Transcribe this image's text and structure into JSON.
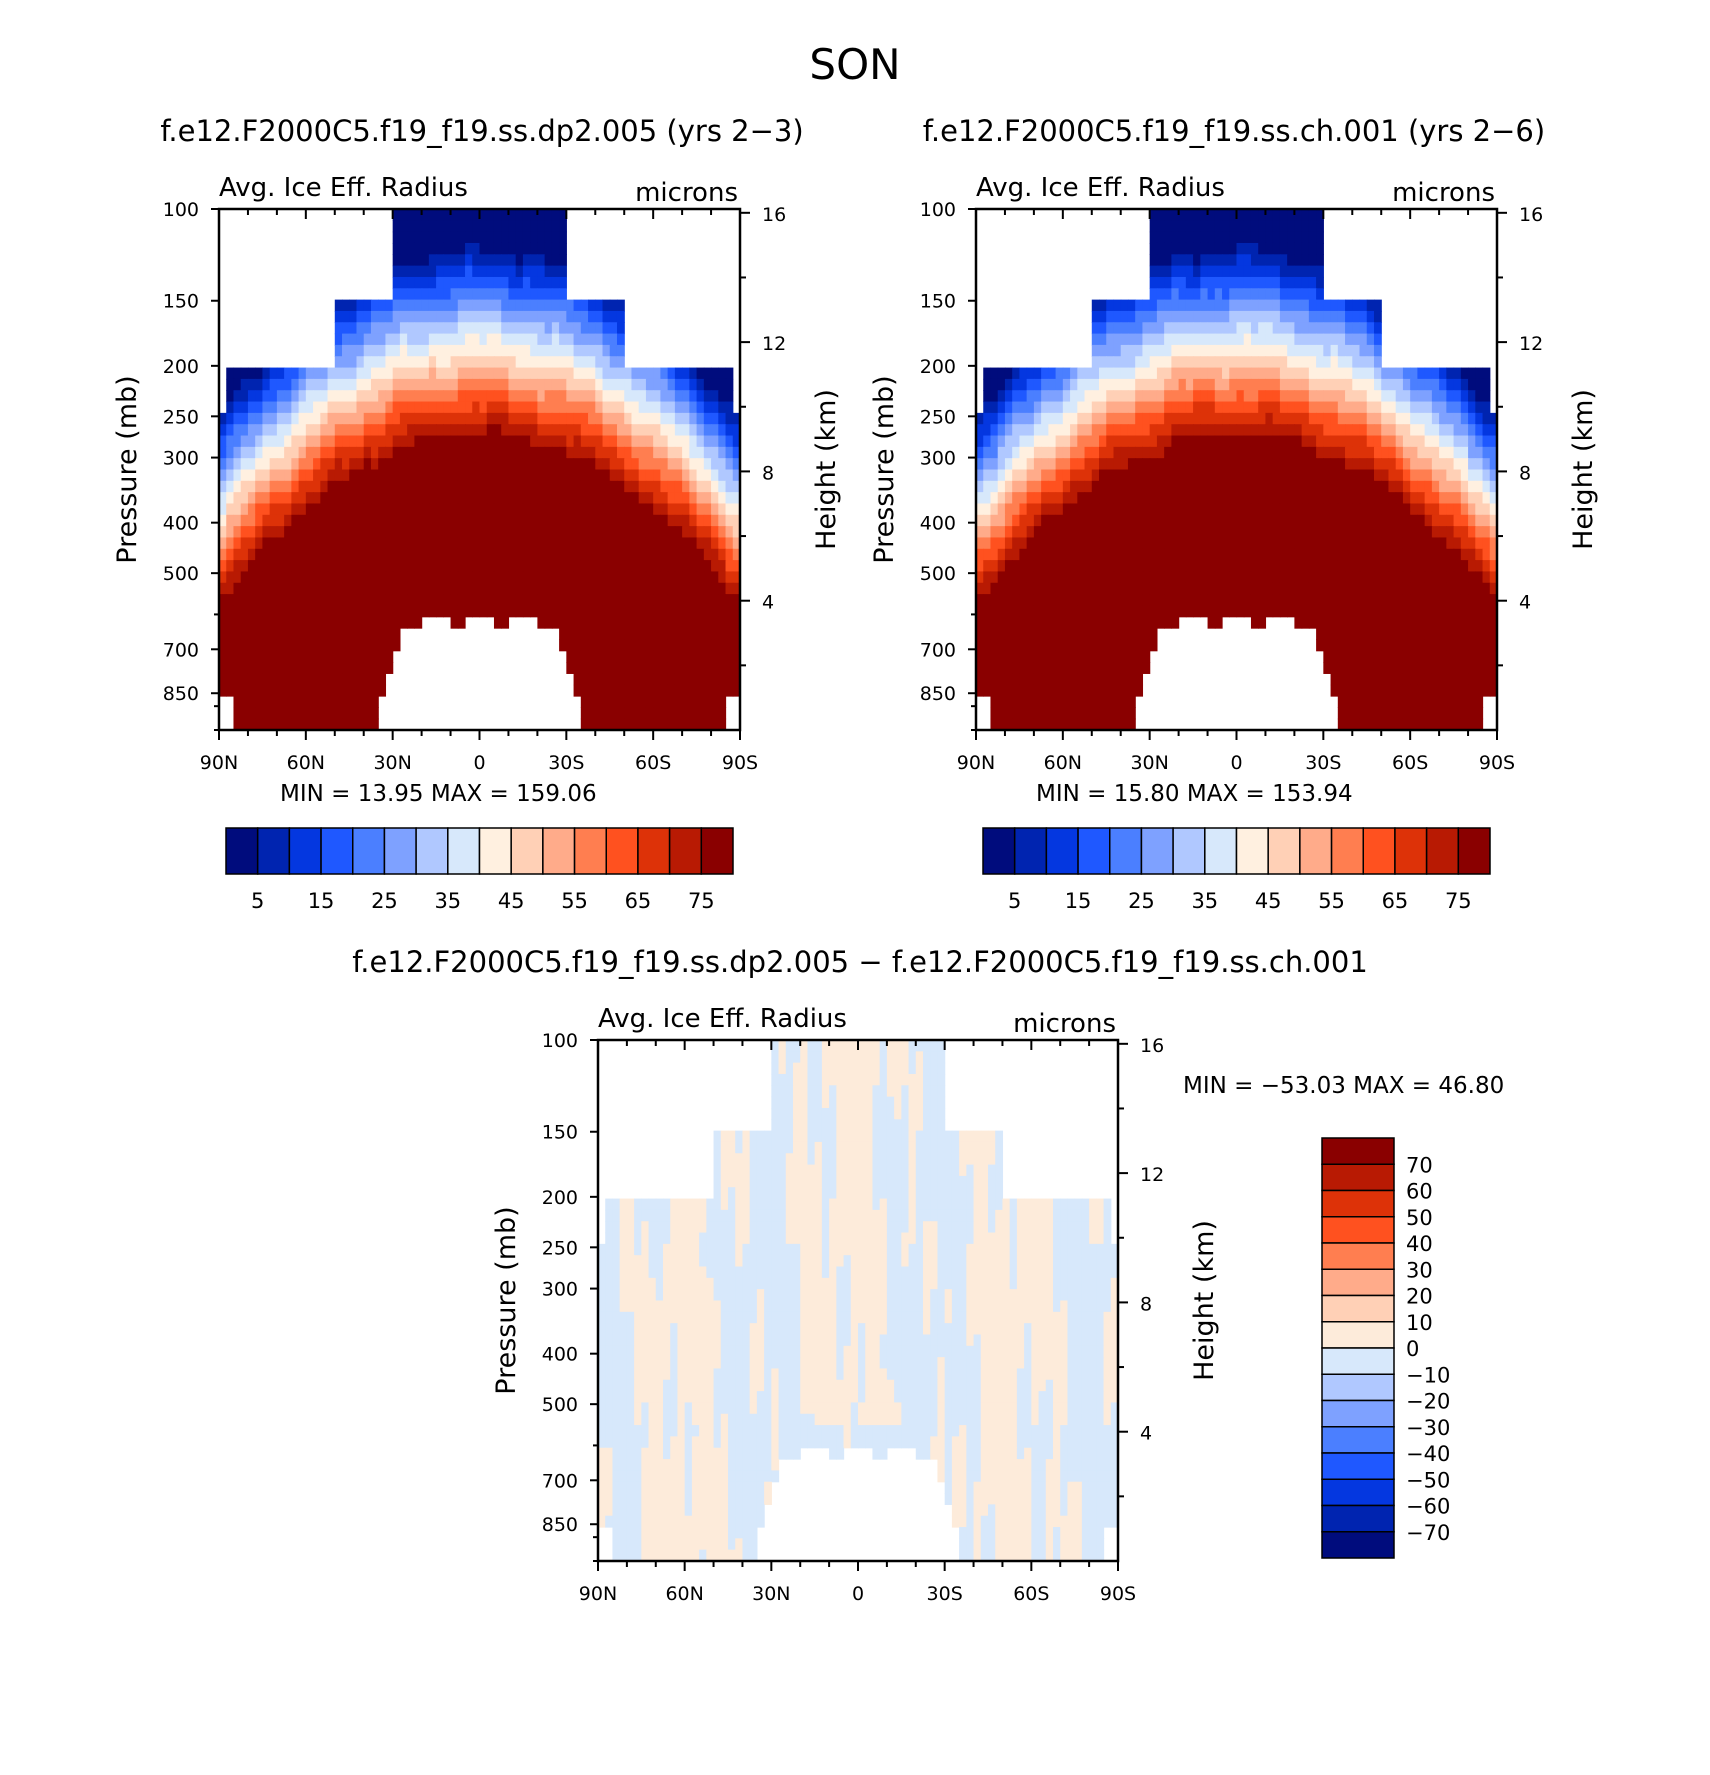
{
  "suptitle": "SON",
  "palette_abs": [
    "#000c7d",
    "#0024b0",
    "#0437e0",
    "#1f58ff",
    "#4b7fff",
    "#7ea1ff",
    "#b0c8ff",
    "#d7e8fb",
    "#fff0e0",
    "#ffd0b6",
    "#ffab8a",
    "#ff7e50",
    "#ff511f",
    "#dd3208",
    "#b81a03",
    "#8a0000"
  ],
  "palette_diff": [
    "#000c7d",
    "#0024b0",
    "#0437e0",
    "#1f58ff",
    "#4b7fff",
    "#7ea1ff",
    "#b0c8ff",
    "#d7e8fb",
    "#fdebda",
    "#ffd0b6",
    "#ffab8a",
    "#ff7e50",
    "#ff511f",
    "#dd3208",
    "#b81a03",
    "#8a0000"
  ],
  "chart_data": [
    {
      "type": "heatmap",
      "case": "f.e12.F2000C5.f19_f19.ss.dp2.005 (yrs 2-3)",
      "variable": "Avg. Ice Eff. Radius",
      "units": "microns",
      "xlabel": "",
      "ylabel": "Pressure (mb)",
      "ylabel_right": "Height (km)",
      "x_ticks": [
        "90N",
        "60N",
        "30N",
        "0",
        "30S",
        "60S",
        "90S"
      ],
      "y_ticks": [
        100,
        150,
        200,
        250,
        300,
        400,
        500,
        700,
        850
      ],
      "y_ticks_right": [
        16,
        12,
        8,
        4
      ],
      "ylim": [
        100,
        1000
      ],
      "y_scale": "log",
      "stats": {
        "min_label": "MIN =",
        "min": "13.95",
        "max_label": "MAX =",
        "max": "159.06"
      },
      "colorbar_levels": [
        5,
        10,
        15,
        20,
        25,
        30,
        35,
        40,
        45,
        50,
        55,
        60,
        65,
        70,
        75
      ],
      "colorbar_labels": [
        "5",
        "15",
        "25",
        "35",
        "45",
        "55",
        "65",
        "75"
      ],
      "colorbar_orientation": "horizontal"
    },
    {
      "type": "heatmap",
      "case": "f.e12.F2000C5.f19_f19.ss.ch.001 (yrs 2-6)",
      "variable": "Avg. Ice Eff. Radius",
      "units": "microns",
      "xlabel": "",
      "ylabel": "Pressure (mb)",
      "ylabel_right": "Height (km)",
      "x_ticks": [
        "90N",
        "60N",
        "30N",
        "0",
        "30S",
        "60S",
        "90S"
      ],
      "y_ticks": [
        100,
        150,
        200,
        250,
        300,
        400,
        500,
        700,
        850
      ],
      "y_ticks_right": [
        16,
        12,
        8,
        4
      ],
      "ylim": [
        100,
        1000
      ],
      "y_scale": "log",
      "stats": {
        "min_label": "MIN =",
        "min": "15.80",
        "max_label": "MAX =",
        "max": "153.94"
      },
      "colorbar_levels": [
        5,
        10,
        15,
        20,
        25,
        30,
        35,
        40,
        45,
        50,
        55,
        60,
        65,
        70,
        75
      ],
      "colorbar_labels": [
        "5",
        "15",
        "25",
        "35",
        "45",
        "55",
        "65",
        "75"
      ],
      "colorbar_orientation": "horizontal"
    },
    {
      "type": "heatmap",
      "case": "f.e12.F2000C5.f19_f19.ss.dp2.005 - f.e12.F2000C5.f19_f19.ss.ch.001",
      "variable": "Avg. Ice Eff. Radius",
      "units": "microns",
      "xlabel": "",
      "ylabel": "Pressure (mb)",
      "ylabel_right": "Height (km)",
      "x_ticks": [
        "90N",
        "60N",
        "30N",
        "0",
        "30S",
        "60S",
        "90S"
      ],
      "y_ticks": [
        100,
        150,
        200,
        250,
        300,
        400,
        500,
        700,
        850
      ],
      "y_ticks_right": [
        16,
        12,
        8,
        4
      ],
      "ylim": [
        100,
        1000
      ],
      "y_scale": "log",
      "stats": {
        "min_label": "MIN =",
        "min": "-53.03",
        "max_label": "MAX =",
        "max": "46.80"
      },
      "colorbar_levels": [
        -70,
        -60,
        -50,
        -40,
        -30,
        -20,
        -10,
        0,
        10,
        20,
        30,
        40,
        50,
        60,
        70
      ],
      "colorbar_labels": [
        "70",
        "60",
        "50",
        "40",
        "30",
        "20",
        "10",
        "0",
        "-10",
        "-20",
        "-30",
        "-40",
        "-50",
        "-60",
        "-70"
      ],
      "colorbar_orientation": "vertical"
    }
  ]
}
